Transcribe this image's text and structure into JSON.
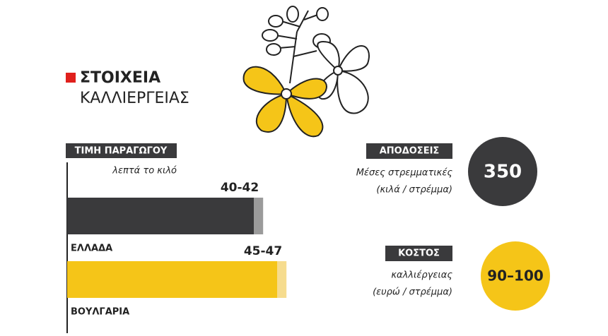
{
  "header": {
    "title": "ΣΤΟΙΧΕΙΑ",
    "subtitle": "ΚΑΛΛΙΕΡΓΕΙΑΣ"
  },
  "chart_data": {
    "type": "bar",
    "title": "ΤΙΜΗ ΠΑΡΑΓΩΓΟΥ",
    "subtitle": "λεπτά το κιλό",
    "categories": [
      "ΕΛΛΑΔΑ",
      "ΒΟΥΛΓΑΡΙΑ"
    ],
    "ranges": [
      [
        40,
        42
      ],
      [
        45,
        47
      ]
    ],
    "value_labels": [
      "40-42",
      "45-47"
    ],
    "colors": [
      "#3a3a3c",
      "#f5c518"
    ],
    "range_colors": [
      "#9b9b9b",
      "#f6dc8e"
    ]
  },
  "stats": [
    {
      "title": "ΑΠΟΔΟΣΕΙΣ",
      "lines": [
        "Μέσες στρεμματικές",
        "(κιλά / στρέμμα)"
      ],
      "value": 350,
      "color": "#3a3a3c",
      "text_color": "#ffffff"
    },
    {
      "title": "ΚΟΣΤΟΣ",
      "lines": [
        "καλλιέργειας",
        "(ευρώ / στρέμμα)"
      ],
      "value": "90–100",
      "color": "#f5c518",
      "text_color": "#222222"
    }
  ]
}
